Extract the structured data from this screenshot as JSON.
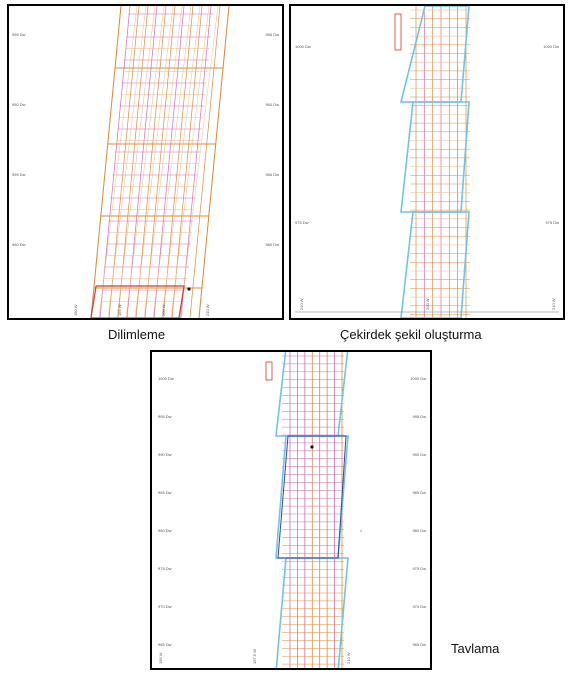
{
  "figure": {
    "panels": [
      {
        "id": "slicing",
        "caption": "Dilimleme",
        "left_ticks": [
          "955 Dw",
          "950 Dw",
          "955 Dw",
          "960 Dw"
        ],
        "right_ticks": [
          "955 Dw",
          "950 Dw",
          "955 Dw",
          "960 Dw"
        ],
        "bottom_ticks": [
          "190 W",
          "195 W",
          "200 W",
          "210 W"
        ]
      },
      {
        "id": "core-shaping",
        "caption": "Çekirdek şekil oluşturma",
        "left_ticks": [
          "1000 Dw",
          "975 Dw"
        ],
        "right_ticks": [
          "1000 Dw",
          "975 Dw"
        ],
        "bottom_ticks": [
          "210 W",
          "200 W",
          "210 W"
        ]
      },
      {
        "id": "annealing",
        "caption": "Tavlama",
        "left_ticks": [
          "1000 Dw",
          "995 Dw",
          "990 Dw",
          "985 Dw",
          "980 Dw",
          "975 Dw",
          "970 Dw",
          "965 Dw"
        ],
        "right_ticks": [
          "1000 Dw",
          "995 Dw",
          "990 Dw",
          "985 Dw",
          "980 Dw",
          "975 Dw",
          "970 Dw",
          "965 Dw"
        ],
        "bottom_ticks": [
          "195 W",
          "197.5 W",
          "210 W"
        ]
      }
    ],
    "colors": {
      "orange": "#e08a3a",
      "pink": "#d66ab4",
      "peach": "#f2b88a",
      "red": "#d23a2a",
      "cyan": "#6fc4e3",
      "blue": "#3346a8"
    }
  }
}
